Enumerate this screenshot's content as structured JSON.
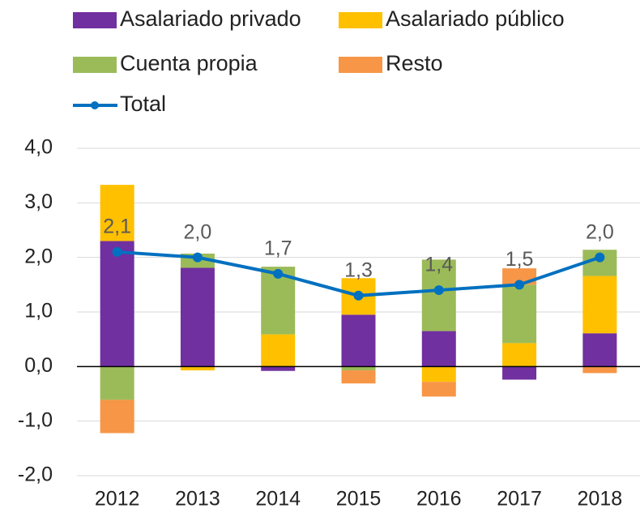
{
  "chart_data": {
    "type": "bar",
    "categories": [
      "2012",
      "2013",
      "2014",
      "2015",
      "2016",
      "2017",
      "2018"
    ],
    "series": [
      {
        "name": "Asalariado privado",
        "color": "#7030a0",
        "values": [
          2.3,
          1.81,
          -0.08,
          0.95,
          0.65,
          -0.24,
          0.61
        ]
      },
      {
        "name": "Asalariado público",
        "color": "#ffc000",
        "values": [
          1.03,
          -0.07,
          0.59,
          0.67,
          -0.28,
          0.43,
          1.05
        ]
      },
      {
        "name": "Cuenta propia",
        "color": "#9bbb59",
        "values": [
          -0.61,
          0.26,
          1.24,
          -0.07,
          1.31,
          1.07,
          0.48
        ]
      },
      {
        "name": "Resto",
        "color": "#f79646",
        "values": [
          -0.61,
          0,
          0,
          -0.24,
          -0.27,
          0.3,
          -0.12
        ]
      },
      {
        "name": "Total",
        "type": "line",
        "color": "#0070c0",
        "values": [
          2.1,
          2.0,
          1.7,
          1.3,
          1.4,
          1.5,
          2.0
        ],
        "value_labels": [
          "2,1",
          "2,0",
          "1,7",
          "1,3",
          "1,4",
          "1,5",
          "2,0"
        ]
      }
    ],
    "ylim": [
      -2,
      4
    ],
    "yticks": [
      {
        "value": -2,
        "label": "-2,0"
      },
      {
        "value": -1,
        "label": "-1,0"
      },
      {
        "value": 0,
        "label": "0,0"
      },
      {
        "value": 1,
        "label": "1,0"
      },
      {
        "value": 2,
        "label": "2,0"
      },
      {
        "value": 3,
        "label": "3,0"
      },
      {
        "value": 4,
        "label": "4,0"
      }
    ],
    "grid": true
  }
}
